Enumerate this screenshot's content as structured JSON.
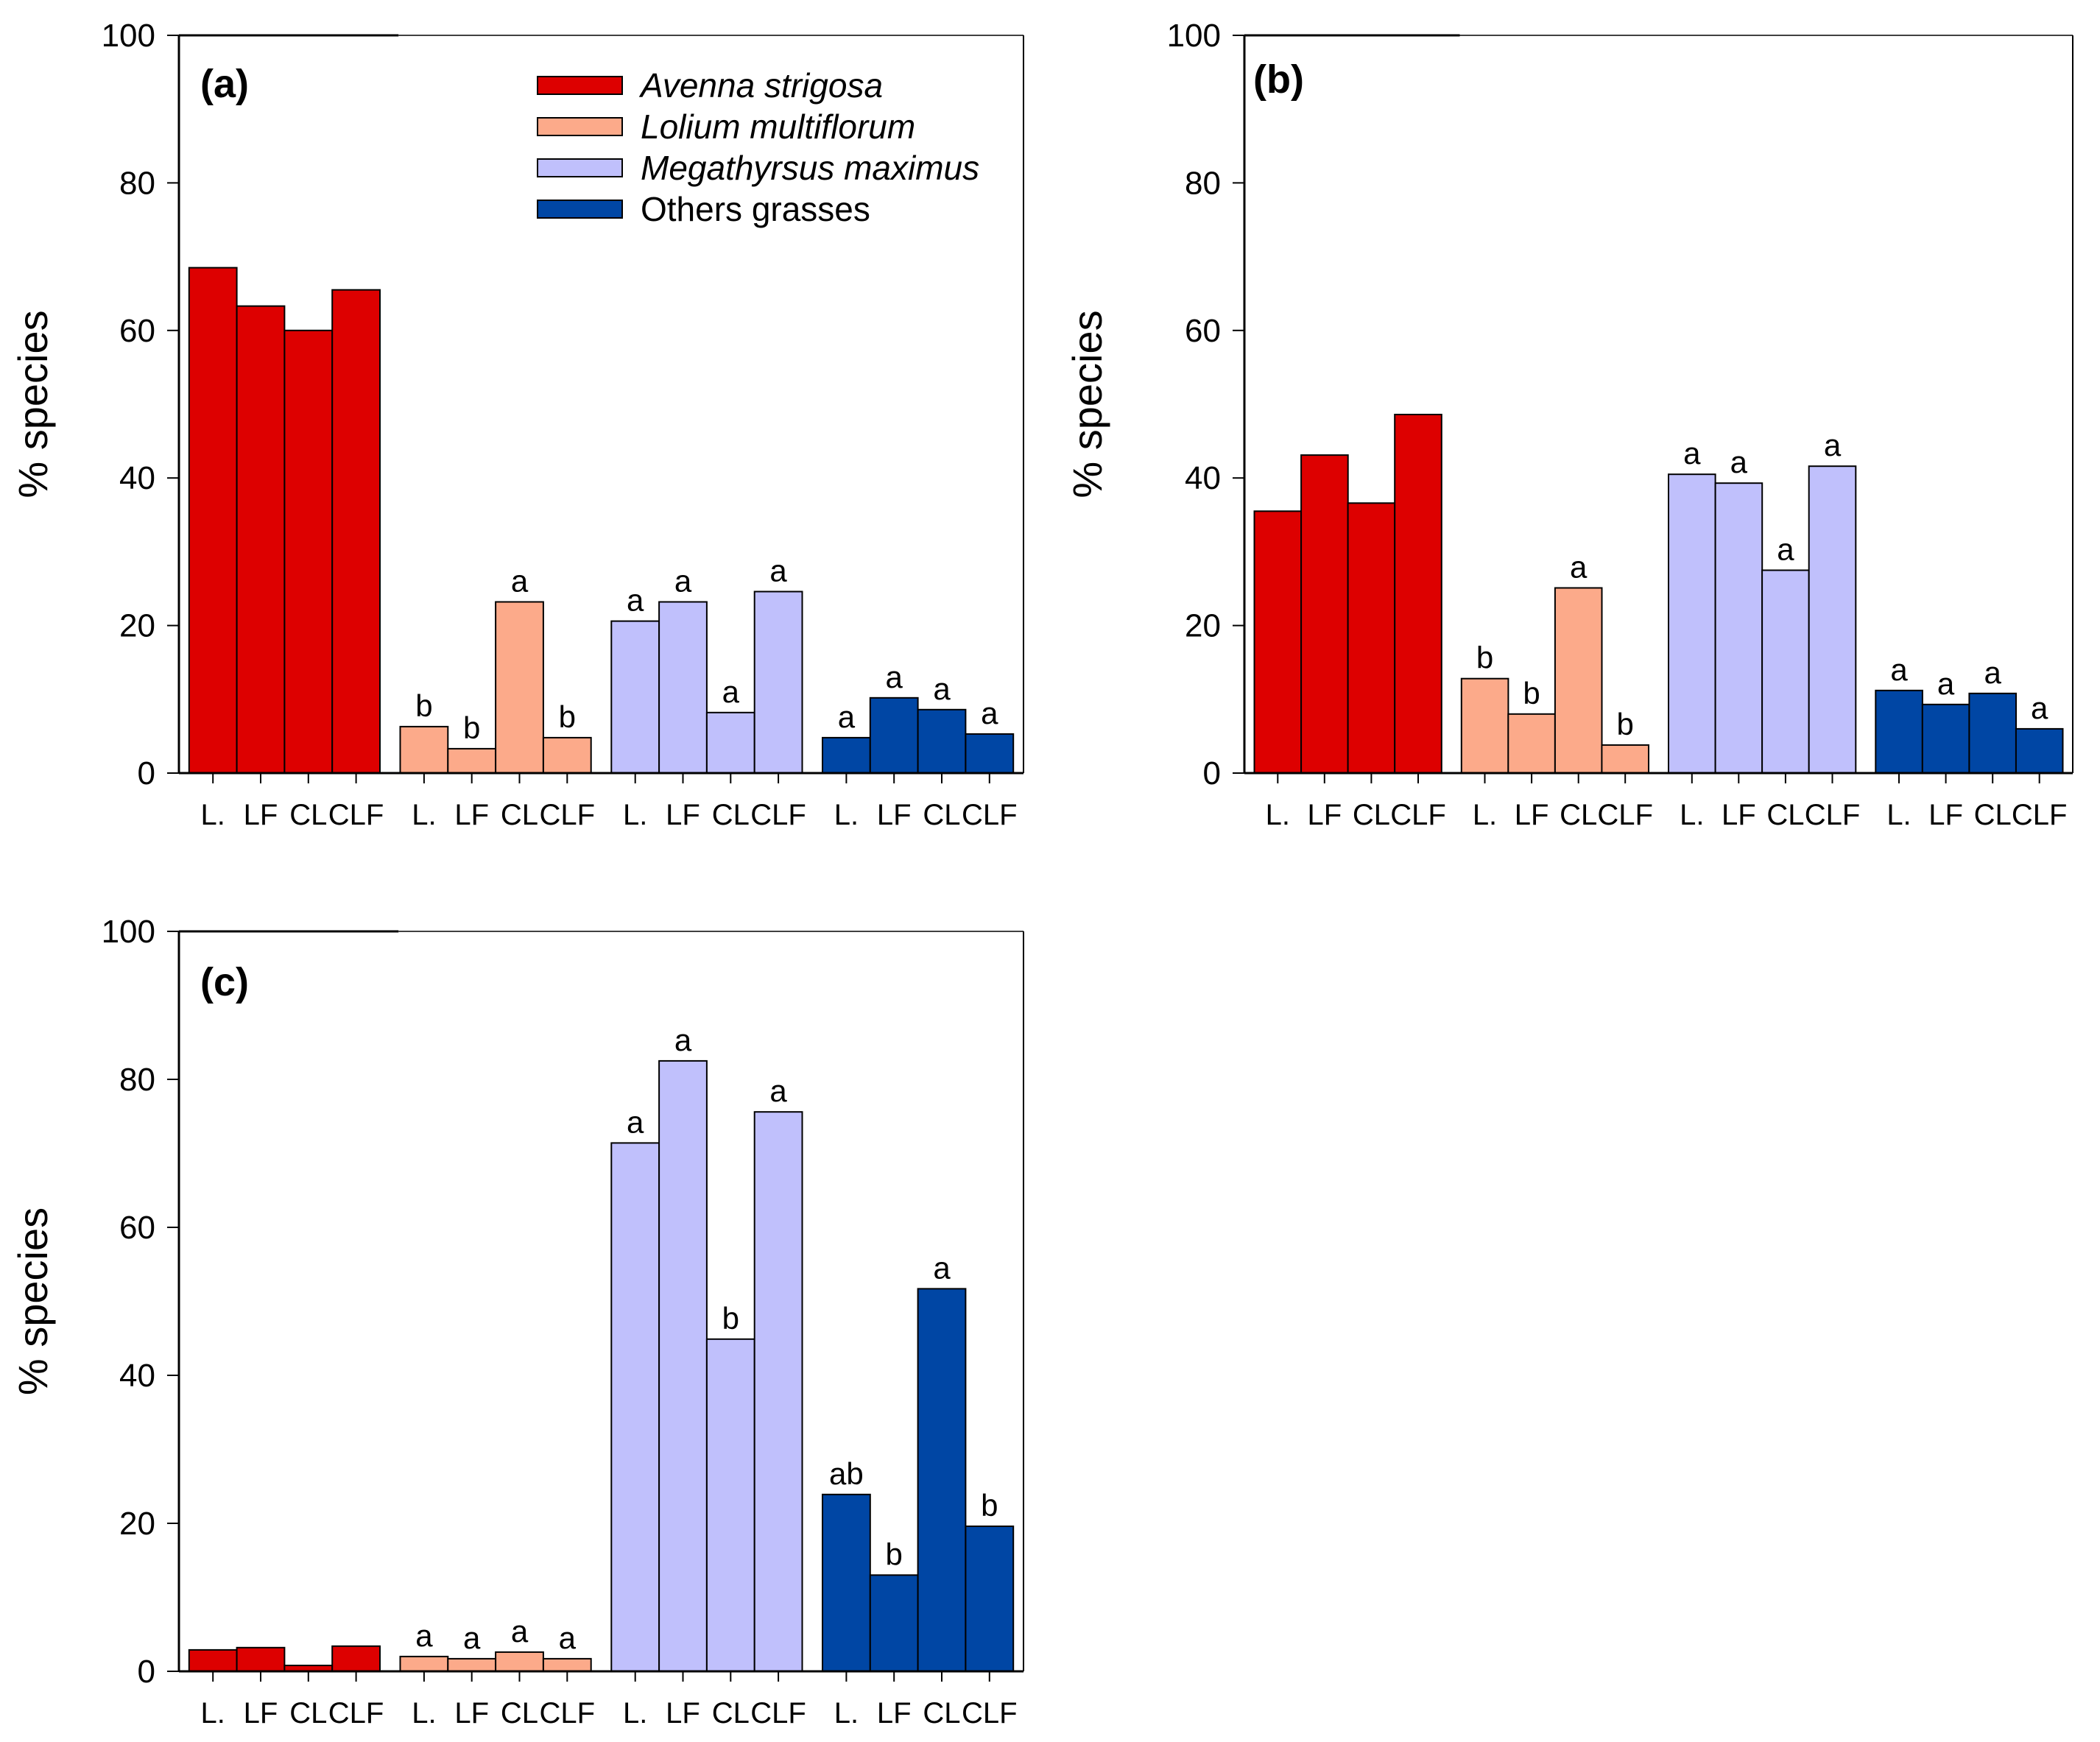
{
  "colors": {
    "avenna": "#dd0000",
    "lolium": "#fcaa8a",
    "megathyrsus": "#c0c0fc",
    "others": "#0046a4"
  },
  "legend": [
    {
      "name": "Avenna strigosa",
      "italic": true,
      "color_key": "avenna"
    },
    {
      "name": "Lolium multiflorum",
      "italic": true,
      "color_key": "lolium"
    },
    {
      "name": "Megathyrsus maximus",
      "italic": true,
      "color_key": "megathyrsus"
    },
    {
      "name": "Others grasses",
      "italic": false,
      "color_key": "others"
    }
  ],
  "chart_data": [
    {
      "type": "bar",
      "panel_label": "(a)",
      "ylabel": "% species",
      "ylim": [
        0,
        100
      ],
      "yticks": [
        "0",
        "20",
        "40",
        "60",
        "80",
        "100"
      ],
      "categories": [
        "L.",
        "LF",
        "CL",
        "CLF"
      ],
      "series": [
        {
          "name": "Avenna strigosa",
          "color_key": "avenna",
          "values": [
            68.5,
            63.3,
            60.0,
            65.5
          ],
          "labels": [
            "",
            "",
            "",
            ""
          ]
        },
        {
          "name": "Lolium multiflorum",
          "color_key": "lolium",
          "values": [
            6.3,
            3.3,
            23.2,
            4.8
          ],
          "labels": [
            "b",
            "b",
            "a",
            "b"
          ]
        },
        {
          "name": "Megathyrsus maximus",
          "color_key": "megathyrsus",
          "values": [
            20.6,
            23.2,
            8.2,
            24.6
          ],
          "labels": [
            "a",
            "a",
            "a",
            "a"
          ]
        },
        {
          "name": "Others grasses",
          "color_key": "others",
          "values": [
            4.8,
            10.2,
            8.6,
            5.3
          ],
          "labels": [
            "a",
            "a",
            "a",
            "a"
          ]
        }
      ]
    },
    {
      "type": "bar",
      "panel_label": "(b)",
      "ylabel": "% species",
      "ylim": [
        0,
        100
      ],
      "yticks": [
        "0",
        "20",
        "40",
        "60",
        "80",
        "100"
      ],
      "categories": [
        "L.",
        "LF",
        "CL",
        "CLF"
      ],
      "series": [
        {
          "name": "Avenna strigosa",
          "color_key": "avenna",
          "values": [
            35.5,
            43.1,
            36.6,
            48.6
          ],
          "labels": [
            "",
            "",
            "",
            ""
          ]
        },
        {
          "name": "Lolium multiflorum",
          "color_key": "lolium",
          "values": [
            12.8,
            8.0,
            25.1,
            3.8
          ],
          "labels": [
            "b",
            "b",
            "a",
            "b"
          ]
        },
        {
          "name": "Megathyrsus maximus",
          "color_key": "megathyrsus",
          "values": [
            40.5,
            39.3,
            27.5,
            41.6
          ],
          "labels": [
            "a",
            "a",
            "a",
            "a"
          ]
        },
        {
          "name": "Others grasses",
          "color_key": "others",
          "values": [
            11.2,
            9.3,
            10.8,
            6.0
          ],
          "labels": [
            "a",
            "a",
            "a",
            "a"
          ]
        }
      ]
    },
    {
      "type": "bar",
      "panel_label": "(c)",
      "ylabel": "% species",
      "ylim": [
        0,
        100
      ],
      "yticks": [
        "0",
        "20",
        "40",
        "60",
        "80",
        "100"
      ],
      "categories": [
        "L.",
        "LF",
        "CL",
        "CLF"
      ],
      "series": [
        {
          "name": "Avenna strigosa",
          "color_key": "avenna",
          "values": [
            2.9,
            3.2,
            0.8,
            3.4
          ],
          "labels": [
            "",
            "",
            "",
            ""
          ]
        },
        {
          "name": "Lolium multiflorum",
          "color_key": "lolium",
          "values": [
            2.0,
            1.7,
            2.6,
            1.7
          ],
          "labels": [
            "a",
            "a",
            "a",
            "a"
          ]
        },
        {
          "name": "Megathyrsus maximus",
          "color_key": "megathyrsus",
          "values": [
            71.4,
            82.5,
            44.9,
            75.6
          ],
          "labels": [
            "a",
            "a",
            "b",
            "a"
          ]
        },
        {
          "name": "Others grasses",
          "color_key": "others",
          "values": [
            23.9,
            13.0,
            51.7,
            19.6
          ],
          "labels": [
            "ab",
            "b",
            "a",
            "b"
          ]
        }
      ]
    }
  ]
}
